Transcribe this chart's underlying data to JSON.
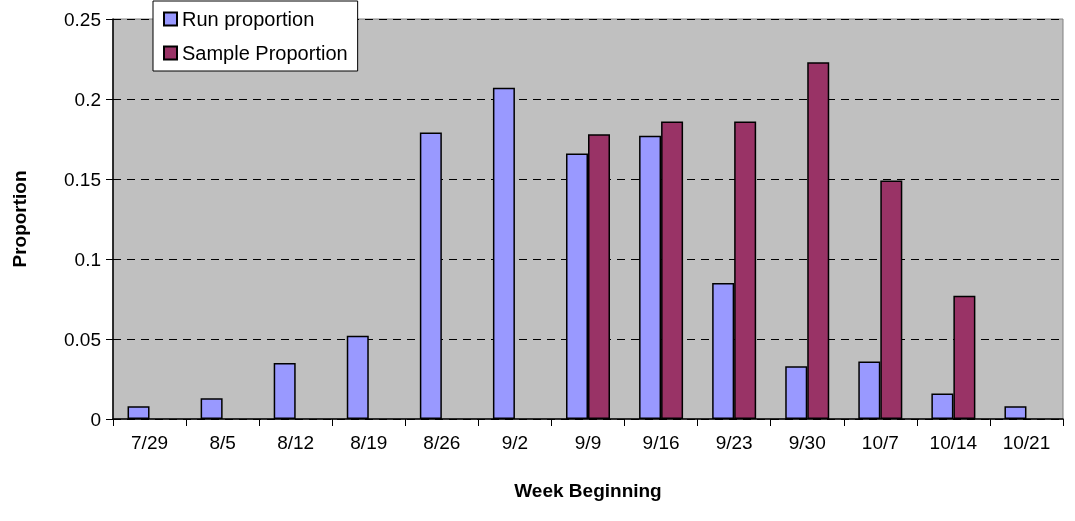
{
  "chart_data": {
    "type": "bar",
    "xlabel": "Week Beginning",
    "ylabel": "Proportion",
    "categories": [
      "7/29",
      "8/5",
      "8/12",
      "8/19",
      "8/26",
      "9/2",
      "9/9",
      "9/16",
      "9/23",
      "9/30",
      "10/7",
      "10/14",
      "10/21"
    ],
    "series": [
      {
        "name": "Run proportion",
        "color": "#9999ff",
        "values": [
          0.008,
          0.013,
          0.035,
          0.052,
          0.179,
          0.207,
          0.166,
          0.177,
          0.085,
          0.033,
          0.036,
          0.016,
          0.008
        ]
      },
      {
        "name": "Sample Proportion",
        "color": "#993366",
        "values": [
          null,
          null,
          null,
          null,
          null,
          null,
          0.178,
          0.186,
          0.186,
          0.223,
          0.149,
          0.077,
          null
        ]
      }
    ],
    "ylim": [
      0,
      0.25
    ],
    "yticks": [
      0,
      0.05,
      0.1,
      0.15,
      0.2,
      0.25
    ],
    "grid": "y",
    "legend": "top left"
  }
}
